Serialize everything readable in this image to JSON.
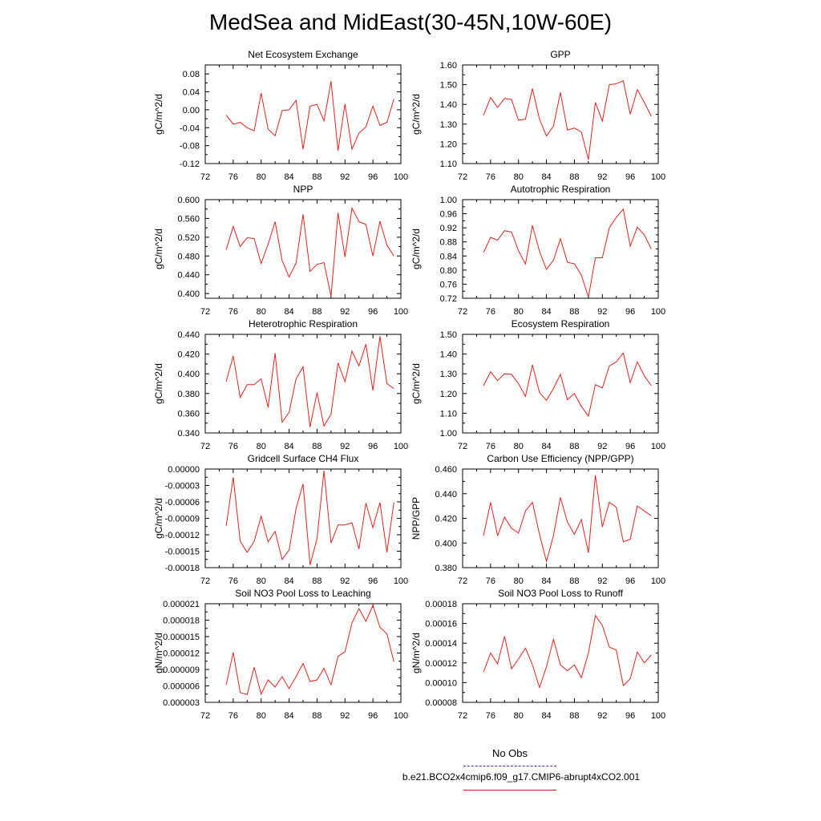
{
  "title": "MedSea and MidEast(30-45N,10W-60E)",
  "legend": {
    "obs_label": "No Obs",
    "case_label": "b.e21.BCO2x4cmip6.f09_g17.CMIP6-abrupt4xCO2.001",
    "obs_color": "#3030c0",
    "case_color": "#e02020"
  },
  "chart_data": [
    {
      "type": "line",
      "title": "Net Ecosystem Exchange",
      "ylabel": "gC/m^2/d",
      "xlabel": "",
      "xlim": [
        72,
        100
      ],
      "xticks": [
        72,
        76,
        80,
        84,
        88,
        92,
        96,
        100
      ],
      "ylim": [
        -0.12,
        0.1
      ],
      "yticks": [
        -0.12,
        -0.08,
        -0.04,
        0.0,
        0.04,
        0.08
      ],
      "ytick_labels": [
        "-0.12",
        "-0.08",
        "-0.04",
        "0.00",
        "0.04",
        "0.08"
      ],
      "x": [
        75,
        76,
        77,
        78,
        79,
        80,
        81,
        82,
        83,
        84,
        85,
        86,
        87,
        88,
        89,
        90,
        91,
        92,
        93,
        94,
        95,
        96,
        97,
        98,
        99
      ],
      "series": [
        {
          "name": "b.e21.BCO2x4cmip6.f09_g17.CMIP6-abrupt4xCO2.001",
          "values": [
            -0.012,
            -0.032,
            -0.028,
            -0.04,
            -0.047,
            0.037,
            -0.043,
            -0.058,
            -0.002,
            0.0,
            0.021,
            -0.088,
            0.008,
            0.012,
            -0.025,
            0.064,
            -0.091,
            0.013,
            -0.088,
            -0.052,
            -0.038,
            0.008,
            -0.035,
            -0.028,
            0.024
          ]
        }
      ]
    },
    {
      "type": "line",
      "title": "GPP",
      "ylabel": "gC/m^2/d",
      "xlabel": "",
      "xlim": [
        72,
        100
      ],
      "xticks": [
        72,
        76,
        80,
        84,
        88,
        92,
        96,
        100
      ],
      "ylim": [
        1.1,
        1.6
      ],
      "yticks": [
        1.1,
        1.2,
        1.3,
        1.4,
        1.5,
        1.6
      ],
      "ytick_labels": [
        "1.10",
        "1.20",
        "1.30",
        "1.40",
        "1.50",
        "1.60"
      ],
      "x": [
        75,
        76,
        77,
        78,
        79,
        80,
        81,
        82,
        83,
        84,
        85,
        86,
        87,
        88,
        89,
        90,
        91,
        92,
        93,
        94,
        95,
        96,
        97,
        98,
        99
      ],
      "series": [
        {
          "name": "b.e21.BCO2x4cmip6.f09_g17.CMIP6-abrupt4xCO2.001",
          "values": [
            1.345,
            1.435,
            1.385,
            1.43,
            1.425,
            1.32,
            1.325,
            1.48,
            1.325,
            1.24,
            1.29,
            1.46,
            1.27,
            1.28,
            1.26,
            1.12,
            1.41,
            1.315,
            1.5,
            1.505,
            1.52,
            1.35,
            1.475,
            1.41,
            1.34
          ]
        }
      ]
    },
    {
      "type": "line",
      "title": "NPP",
      "ylabel": "gC/m^2/d",
      "xlabel": "",
      "xlim": [
        72,
        100
      ],
      "xticks": [
        72,
        76,
        80,
        84,
        88,
        92,
        96,
        100
      ],
      "ylim": [
        0.39,
        0.6
      ],
      "yticks": [
        0.4,
        0.44,
        0.48,
        0.52,
        0.56,
        0.6
      ],
      "ytick_labels": [
        "0.400",
        "0.440",
        "0.480",
        "0.520",
        "0.560",
        "0.600"
      ],
      "x": [
        75,
        76,
        77,
        78,
        79,
        80,
        81,
        82,
        83,
        84,
        85,
        86,
        87,
        88,
        89,
        90,
        91,
        92,
        93,
        94,
        95,
        96,
        97,
        98,
        99
      ],
      "series": [
        {
          "name": "b.e21.BCO2x4cmip6.f09_g17.CMIP6-abrupt4xCO2.001",
          "values": [
            0.493,
            0.543,
            0.5,
            0.519,
            0.517,
            0.464,
            0.505,
            0.553,
            0.47,
            0.435,
            0.465,
            0.569,
            0.447,
            0.462,
            0.466,
            0.394,
            0.572,
            0.478,
            0.582,
            0.553,
            0.547,
            0.48,
            0.554,
            0.503,
            0.48
          ]
        }
      ]
    },
    {
      "type": "line",
      "title": "Autotrophic Respiration",
      "ylabel": "gC/m^2/d",
      "xlabel": "",
      "xlim": [
        72,
        100
      ],
      "xticks": [
        72,
        76,
        80,
        84,
        88,
        92,
        96,
        100
      ],
      "ylim": [
        0.72,
        1.0
      ],
      "yticks": [
        0.72,
        0.76,
        0.8,
        0.84,
        0.88,
        0.92,
        0.96,
        1.0
      ],
      "ytick_labels": [
        "0.72",
        "0.76",
        "0.80",
        "0.84",
        "0.88",
        "0.92",
        "0.96",
        "1.00"
      ],
      "x": [
        75,
        76,
        77,
        78,
        79,
        80,
        81,
        82,
        83,
        84,
        85,
        86,
        87,
        88,
        89,
        90,
        91,
        92,
        93,
        94,
        95,
        96,
        97,
        98,
        99
      ],
      "series": [
        {
          "name": "b.e21.BCO2x4cmip6.f09_g17.CMIP6-abrupt4xCO2.001",
          "values": [
            0.85,
            0.893,
            0.885,
            0.912,
            0.908,
            0.855,
            0.817,
            0.927,
            0.853,
            0.802,
            0.828,
            0.889,
            0.822,
            0.818,
            0.786,
            0.723,
            0.835,
            0.835,
            0.92,
            0.95,
            0.973,
            0.868,
            0.922,
            0.9,
            0.86
          ]
        }
      ]
    },
    {
      "type": "line",
      "title": "Heterotrophic Respiration",
      "ylabel": "gC/m^2/d",
      "xlabel": "",
      "xlim": [
        72,
        100
      ],
      "xticks": [
        72,
        76,
        80,
        84,
        88,
        92,
        96,
        100
      ],
      "ylim": [
        0.34,
        0.44
      ],
      "yticks": [
        0.34,
        0.36,
        0.38,
        0.4,
        0.42,
        0.44
      ],
      "ytick_labels": [
        "0.340",
        "0.360",
        "0.380",
        "0.400",
        "0.420",
        "0.440"
      ],
      "x": [
        75,
        76,
        77,
        78,
        79,
        80,
        81,
        82,
        83,
        84,
        85,
        86,
        87,
        88,
        89,
        90,
        91,
        92,
        93,
        94,
        95,
        96,
        97,
        98,
        99
      ],
      "series": [
        {
          "name": "b.e21.BCO2x4cmip6.f09_g17.CMIP6-abrupt4xCO2.001",
          "values": [
            0.392,
            0.418,
            0.376,
            0.389,
            0.389,
            0.395,
            0.366,
            0.421,
            0.351,
            0.361,
            0.395,
            0.407,
            0.346,
            0.381,
            0.347,
            0.359,
            0.411,
            0.392,
            0.423,
            0.408,
            0.43,
            0.383,
            0.438,
            0.39,
            0.385
          ]
        }
      ]
    },
    {
      "type": "line",
      "title": "Ecosystem Respiration",
      "ylabel": "gC/m^2/d",
      "xlabel": "",
      "xlim": [
        72,
        100
      ],
      "xticks": [
        72,
        76,
        80,
        84,
        88,
        92,
        96,
        100
      ],
      "ylim": [
        1.0,
        1.5
      ],
      "yticks": [
        1.0,
        1.1,
        1.2,
        1.3,
        1.4,
        1.5
      ],
      "ytick_labels": [
        "1.00",
        "1.10",
        "1.20",
        "1.30",
        "1.40",
        "1.50"
      ],
      "x": [
        75,
        76,
        77,
        78,
        79,
        80,
        81,
        82,
        83,
        84,
        85,
        86,
        87,
        88,
        89,
        90,
        91,
        92,
        93,
        94,
        95,
        96,
        97,
        98,
        99
      ],
      "series": [
        {
          "name": "b.e21.BCO2x4cmip6.f09_g17.CMIP6-abrupt4xCO2.001",
          "values": [
            1.24,
            1.31,
            1.265,
            1.3,
            1.297,
            1.25,
            1.185,
            1.345,
            1.205,
            1.165,
            1.225,
            1.297,
            1.168,
            1.2,
            1.135,
            1.085,
            1.245,
            1.228,
            1.34,
            1.36,
            1.405,
            1.255,
            1.36,
            1.29,
            1.24
          ]
        }
      ]
    },
    {
      "type": "line",
      "title": "Gridcell Surface CH4 Flux",
      "ylabel": "gC/m^2/d",
      "xlabel": "",
      "xlim": [
        72,
        100
      ],
      "xticks": [
        72,
        76,
        80,
        84,
        88,
        92,
        96,
        100
      ],
      "ylim": [
        -0.00018,
        0.0
      ],
      "yticks": [
        -0.00018,
        -0.00015,
        -0.00012,
        -9e-05,
        -6e-05,
        -3e-05,
        0.0
      ],
      "ytick_labels": [
        "-0.00018",
        "-0.00015",
        "-0.00012",
        "-0.00009",
        "-0.00006",
        "-0.00003",
        "0.00000"
      ],
      "x": [
        75,
        76,
        77,
        78,
        79,
        80,
        81,
        82,
        83,
        84,
        85,
        86,
        87,
        88,
        89,
        90,
        91,
        92,
        93,
        94,
        95,
        96,
        97,
        98,
        99
      ],
      "series": [
        {
          "name": "b.e21.BCO2x4cmip6.f09_g17.CMIP6-abrupt4xCO2.001",
          "values": [
            -0.000104,
            -1.5e-05,
            -0.000132,
            -0.000152,
            -0.000132,
            -8.6e-05,
            -0.000133,
            -0.000114,
            -0.000165,
            -0.000148,
            -7.2e-05,
            -2.7e-05,
            -0.000175,
            -0.000127,
            -3e-06,
            -0.000135,
            -0.000102,
            -0.000102,
            -9.8e-05,
            -0.000146,
            -6.2e-05,
            -0.000107,
            -6.1e-05,
            -0.000152,
            -6.1e-05
          ]
        }
      ]
    },
    {
      "type": "line",
      "title": "Carbon Use Efficiency (NPP/GPP)",
      "ylabel": "NPP/GPP",
      "xlabel": "",
      "xlim": [
        72,
        100
      ],
      "xticks": [
        72,
        76,
        80,
        84,
        88,
        92,
        96,
        100
      ],
      "ylim": [
        0.38,
        0.46
      ],
      "yticks": [
        0.38,
        0.4,
        0.42,
        0.44,
        0.46
      ],
      "ytick_labels": [
        "0.380",
        "0.400",
        "0.420",
        "0.440",
        "0.460"
      ],
      "x": [
        75,
        76,
        77,
        78,
        79,
        80,
        81,
        82,
        83,
        84,
        85,
        86,
        87,
        88,
        89,
        90,
        91,
        92,
        93,
        94,
        95,
        96,
        97,
        98,
        99
      ],
      "series": [
        {
          "name": "b.e21.BCO2x4cmip6.f09_g17.CMIP6-abrupt4xCO2.001",
          "values": [
            0.406,
            0.433,
            0.406,
            0.421,
            0.412,
            0.408,
            0.426,
            0.433,
            0.407,
            0.385,
            0.406,
            0.437,
            0.417,
            0.407,
            0.419,
            0.392,
            0.455,
            0.413,
            0.433,
            0.429,
            0.401,
            0.403,
            0.43,
            0.426,
            0.422
          ]
        }
      ]
    },
    {
      "type": "line",
      "title": "Soil NO3 Pool Loss to Leaching",
      "ylabel": "gN/m^2/d",
      "xlabel": "",
      "xlim": [
        72,
        100
      ],
      "xticks": [
        72,
        76,
        80,
        84,
        88,
        92,
        96,
        100
      ],
      "ylim": [
        3e-06,
        2.1e-05
      ],
      "yticks": [
        3e-06,
        6e-06,
        9e-06,
        1.2e-05,
        1.5e-05,
        1.8e-05,
        2.1e-05
      ],
      "ytick_labels": [
        "0.000003",
        "0.000006",
        "0.000009",
        "0.000012",
        "0.000015",
        "0.000018",
        "0.000021"
      ],
      "x": [
        75,
        76,
        77,
        78,
        79,
        80,
        81,
        82,
        83,
        84,
        85,
        86,
        87,
        88,
        89,
        90,
        91,
        92,
        93,
        94,
        95,
        96,
        97,
        98,
        99
      ],
      "series": [
        {
          "name": "b.e21.BCO2x4cmip6.f09_g17.CMIP6-abrupt4xCO2.001",
          "values": [
            6.2e-06,
            1.21e-05,
            4.8e-06,
            4.4e-06,
            9.4e-06,
            4.5e-06,
            7.1e-06,
            5.8e-06,
            7.7e-06,
            5.5e-06,
            7.7e-06,
            1.01e-05,
            6.8e-06,
            7.1e-06,
            9.2e-06,
            6.2e-06,
            1.14e-05,
            1.22e-05,
            1.75e-05,
            2.01e-05,
            1.78e-05,
            2.07e-05,
            1.67e-05,
            1.55e-05,
            1.04e-05
          ]
        }
      ]
    },
    {
      "type": "line",
      "title": "Soil NO3 Pool Loss to Runoff",
      "ylabel": "gN/m^2/d",
      "xlabel": "",
      "xlim": [
        72,
        100
      ],
      "xticks": [
        72,
        76,
        80,
        84,
        88,
        92,
        96,
        100
      ],
      "ylim": [
        8e-05,
        0.00018
      ],
      "yticks": [
        8e-05,
        0.0001,
        0.00012,
        0.00014,
        0.00016,
        0.00018
      ],
      "ytick_labels": [
        "0.00008",
        "0.00010",
        "0.00012",
        "0.00014",
        "0.00016",
        "0.00018"
      ],
      "x": [
        75,
        76,
        77,
        78,
        79,
        80,
        81,
        82,
        83,
        84,
        85,
        86,
        87,
        88,
        89,
        90,
        91,
        92,
        93,
        94,
        95,
        96,
        97,
        98,
        99
      ],
      "series": [
        {
          "name": "b.e21.BCO2x4cmip6.f09_g17.CMIP6-abrupt4xCO2.001",
          "values": [
            0.000111,
            0.00013,
            0.000119,
            0.000147,
            0.000114,
            0.000124,
            0.000135,
            0.000118,
            9.5e-05,
            0.000116,
            0.000144,
            0.000118,
            0.000112,
            0.000118,
            0.000105,
            0.00013,
            0.000168,
            0.000158,
            0.000136,
            0.000133,
            9.7e-05,
            0.000104,
            0.000131,
            0.00012,
            0.000128
          ]
        }
      ]
    }
  ]
}
